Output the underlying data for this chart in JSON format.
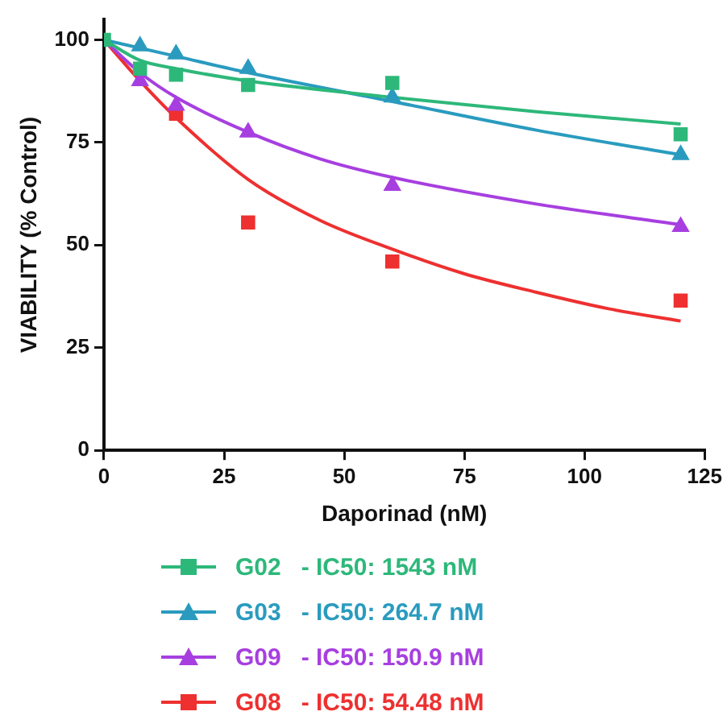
{
  "chart_data": {
    "type": "scatter",
    "xlabel": "Daporinad (nM)",
    "ylabel": "VIABILITY (% Control)",
    "xlim": [
      0,
      125
    ],
    "ylim": [
      0,
      105
    ],
    "xticks": [
      0,
      25,
      50,
      75,
      100,
      125
    ],
    "yticks": [
      0,
      25,
      50,
      75,
      100
    ],
    "grid": false,
    "legend": "bottom",
    "series": [
      {
        "name": "G02   - IC50: 1543 nM",
        "color": "#2db87a",
        "marker": "square",
        "x": [
          0,
          7.5,
          15,
          30,
          60,
          120
        ],
        "values": [
          100,
          93,
          91.5,
          89,
          89.5,
          77
        ]
      },
      {
        "name": "G03   - IC50: 264.7 nM",
        "color": "#2a9bbf",
        "marker": "triangle",
        "x": [
          7.5,
          15,
          30,
          60,
          120
        ],
        "values": [
          98.5,
          96.5,
          93,
          86,
          72
        ]
      },
      {
        "name": "G09   - IC50: 150.9 nM",
        "color": "#a73fe0",
        "marker": "triangle",
        "x": [
          7.5,
          15,
          30,
          60,
          120
        ],
        "values": [
          90,
          84,
          77.5,
          64.5,
          54.5
        ]
      },
      {
        "name": "G08   - IC50: 54.48 nM",
        "color": "#ee3030",
        "marker": "square",
        "x": [
          15,
          30,
          60,
          120
        ],
        "values": [
          82,
          55.5,
          46,
          36.5
        ]
      },
      {
        "type": "line",
        "color": "#2db87a",
        "marker": "none",
        "x": [
          0,
          7.5,
          15,
          30,
          60,
          90,
          120
        ],
        "values": [
          100,
          95,
          93,
          90,
          86,
          82.5,
          79.5
        ]
      },
      {
        "type": "line",
        "color": "#2a9bbf",
        "marker": "none",
        "x": [
          0,
          15,
          30,
          60,
          90,
          120
        ],
        "values": [
          100,
          96,
          92,
          85,
          78,
          72
        ]
      },
      {
        "type": "line",
        "color": "#a73fe0",
        "marker": "none",
        "x": [
          0,
          7.5,
          15,
          30,
          45,
          60,
          90,
          120
        ],
        "values": [
          100,
          92,
          86,
          77.5,
          71,
          66.5,
          60,
          55
        ]
      },
      {
        "type": "line",
        "color": "#ee3030",
        "marker": "none",
        "x": [
          0,
          7.5,
          15,
          30,
          45,
          60,
          75,
          90,
          105,
          120
        ],
        "values": [
          100,
          90,
          81,
          66,
          56,
          49,
          43,
          38.5,
          34.5,
          31.5
        ]
      }
    ]
  }
}
